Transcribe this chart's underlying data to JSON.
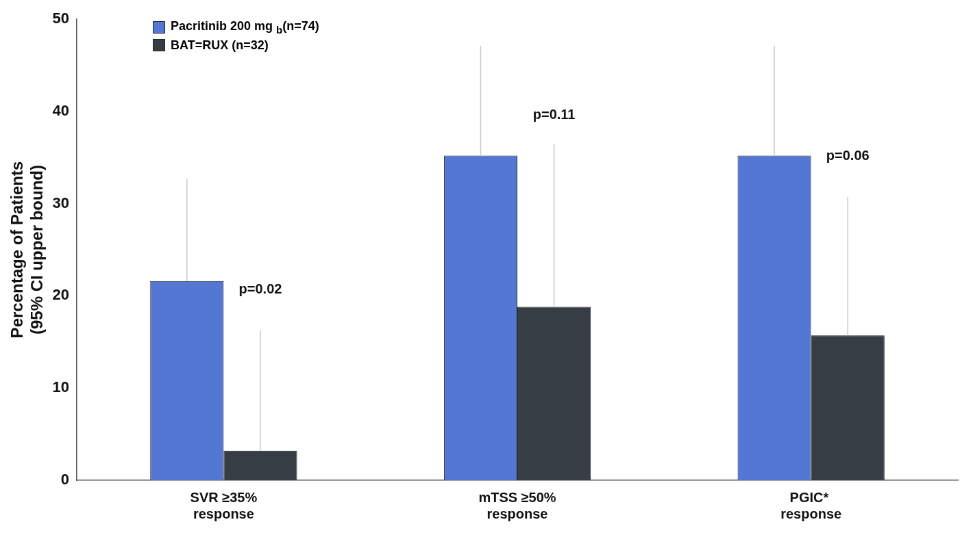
{
  "chart_data": {
    "type": "bar",
    "ylabel": "Percentage of Patients\n(95% CI upper bound)",
    "categories": [
      "SVR ≥35%\nresponse",
      "mTSS ≥50%\nresponse",
      "PGIC* \nresponse"
    ],
    "series": [
      {
        "name": "Pacritinib 200 mg $_{b}$(n=74)",
        "color": "#5577d4",
        "values": [
          21.6,
          35.2,
          35.2
        ],
        "errors": [
          [
            21.6,
            32.7
          ],
          [
            35.2,
            47.1
          ],
          [
            35.2,
            47.1
          ]
        ]
      },
      {
        "name": "BAT=RUX (n=32)",
        "color": "#373d44",
        "values": [
          3.2,
          18.8,
          15.7
        ],
        "errors": [
          [
            3.2,
            16.2
          ],
          [
            18.8,
            36.5
          ],
          [
            15.7,
            30.7
          ]
        ]
      }
    ],
    "ylim": [
      0,
      50
    ],
    "yticks": [
      0,
      10,
      20,
      30,
      40,
      50
    ],
    "grid": false,
    "legend": "top left",
    "annotations": [
      "p=0.02",
      "p=0.11",
      "p=0.06"
    ]
  }
}
